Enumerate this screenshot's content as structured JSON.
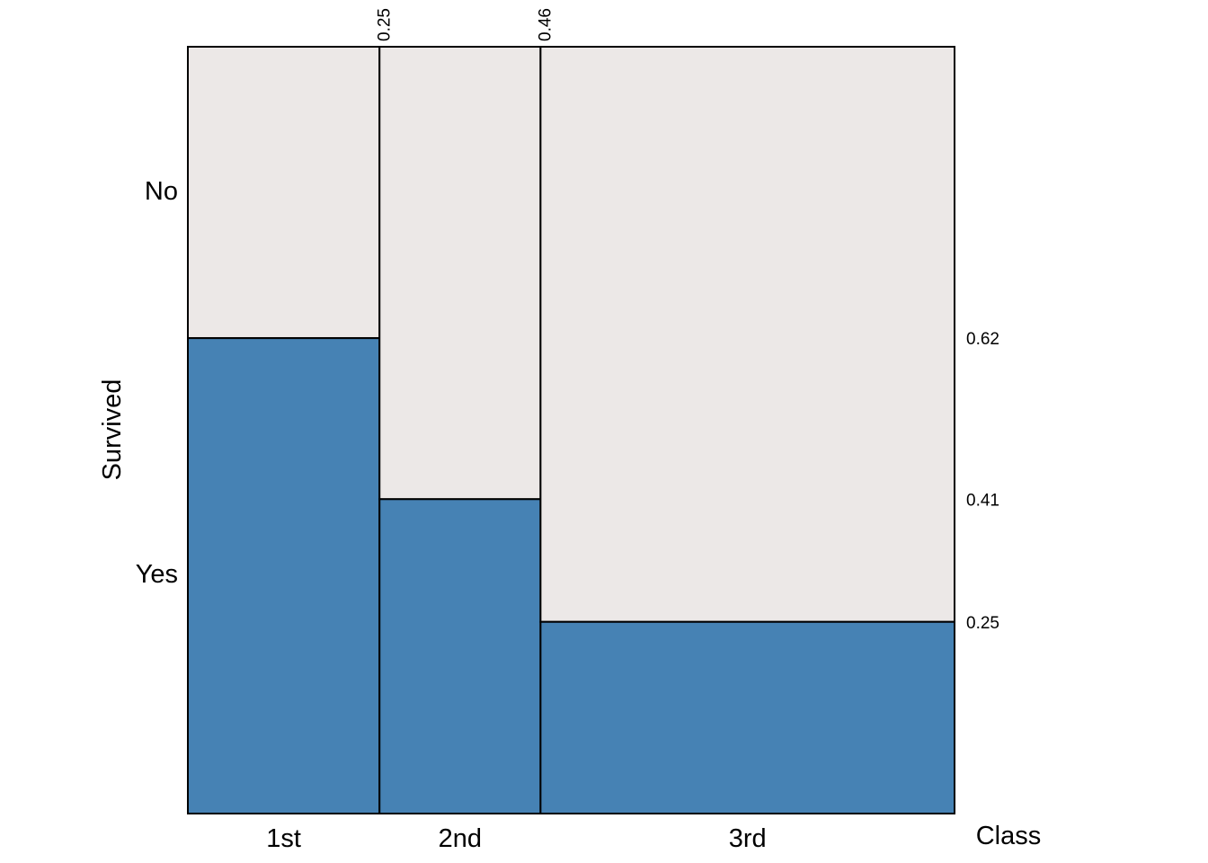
{
  "chart_data": {
    "type": "mosaic",
    "x_variable": "Class",
    "y_variable": "Survived",
    "x_categories": [
      "1st",
      "2nd",
      "3rd"
    ],
    "y_categories": [
      "No",
      "Yes"
    ],
    "x_boundaries": [
      0.25,
      0.46
    ],
    "x_boundary_labels": [
      "0.25",
      "0.46"
    ],
    "yes_proportions": [
      0.62,
      0.41,
      0.25
    ],
    "yes_proportion_labels": [
      "0.62",
      "0.41",
      "0.25"
    ],
    "colors": {
      "No": "#ece8e7",
      "Yes": "#4682b4"
    },
    "xlabel": "Class",
    "ylabel": "Survived"
  }
}
